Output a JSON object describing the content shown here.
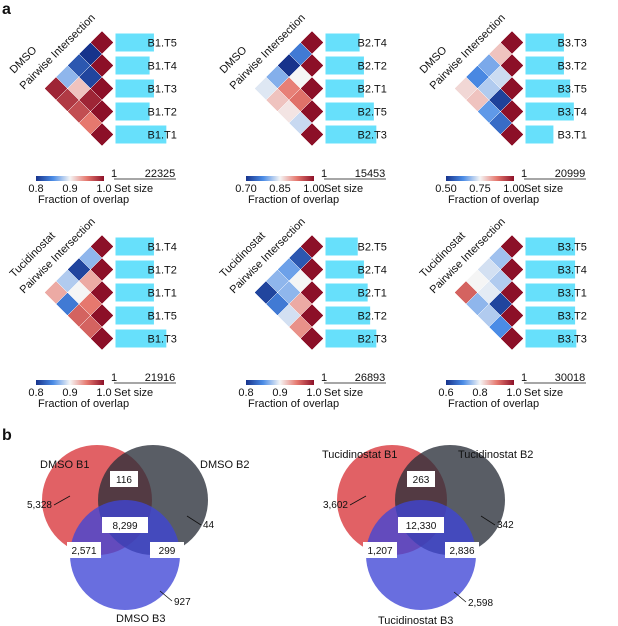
{
  "figure": {
    "panel_a_label": "a",
    "panel_b_label": "b",
    "panel_a": {
      "colorbar_title": "Fraction of overlap",
      "set_size_label": "Set size",
      "heatmaps": [
        {
          "condition": "DMSO",
          "subtitle": "Pairwise Intersection",
          "labels": [
            "B1.T5",
            "B1.T4",
            "B1.T3",
            "B1.T2",
            "B1.T1"
          ],
          "bar_widths": [
            0.62,
            0.55,
            0.62,
            0.55,
            0.82
          ],
          "max_value": "22325",
          "colorbar_ticks": [
            "0.8",
            "0.9",
            "1.0"
          ],
          "colorbar_min_val": 0.8,
          "cells": [
            [
              0.8,
              0.82,
              0.87,
              0.99
            ],
            [
              0.81,
              0.92,
              0.98
            ],
            [
              0.99,
              0.97
            ],
            [
              0.95
            ]
          ]
        },
        {
          "condition": "DMSO",
          "subtitle": "Pairwise Intersection",
          "labels": [
            "B2.T4",
            "B2.T2",
            "B2.T1",
            "B2.T5",
            "B2.T3"
          ],
          "bar_widths": [
            0.55,
            0.62,
            0.62,
            0.78,
            0.82
          ],
          "max_value": "15453",
          "colorbar_ticks": [
            "0.70",
            "0.85",
            "1.00"
          ],
          "colorbar_min_val": 0.7,
          "cells": [
            [
              0.76,
              0.7,
              0.8,
              0.84
            ],
            [
              0.85,
              0.92,
              0.88
            ],
            [
              0.93,
              0.86
            ],
            [
              0.83
            ]
          ]
        },
        {
          "condition": "DMSO",
          "subtitle": "Pairwise Intersection",
          "labels": [
            "B3.T3",
            "B3.T2",
            "B3.T5",
            "B3.T4",
            "B3.T1"
          ],
          "bar_widths": [
            0.62,
            0.62,
            0.72,
            0.78,
            0.45
          ],
          "max_value": "20999",
          "colorbar_ticks": [
            "0.50",
            "0.75",
            "1.00"
          ],
          "colorbar_min_val": 0.5,
          "cells": [
            [
              0.8,
              0.66,
              0.62,
              0.78
            ],
            [
              0.72,
              0.7,
              0.8
            ],
            [
              0.52,
              0.64
            ],
            [
              0.58
            ]
          ]
        },
        {
          "condition": "Tucidinostat",
          "subtitle": "Pairwise Intersection",
          "labels": [
            "B1.T4",
            "B1.T2",
            "B1.T1",
            "B1.T5",
            "B1.T3"
          ],
          "bar_widths": [
            0.62,
            0.62,
            0.62,
            0.62,
            0.82
          ],
          "max_value": "21916",
          "colorbar_ticks": [
            "0.8",
            "0.9",
            "1.0"
          ],
          "colorbar_min_val": 0.8,
          "cells": [
            [
              0.87,
              0.81,
              0.88,
              0.93
            ],
            [
              0.93,
              0.9,
              0.84
            ],
            [
              0.95,
              0.96
            ],
            [
              0.96
            ]
          ]
        },
        {
          "condition": "Tucidinostat",
          "subtitle": "Pairwise Intersection",
          "labels": [
            "B2.T5",
            "B2.T4",
            "B2.T1",
            "B2.T2",
            "B2.T3"
          ],
          "bar_widths": [
            0.52,
            0.62,
            0.68,
            0.72,
            0.82
          ],
          "max_value": "26893",
          "colorbar_ticks": [
            "0.8",
            "0.9",
            "1.0"
          ],
          "colorbar_min_val": 0.8,
          "cells": [
            [
              0.82,
              0.86,
              0.87,
              0.81
            ],
            [
              0.9,
              0.87,
              0.84
            ],
            [
              0.93,
              0.89
            ],
            [
              0.94
            ]
          ]
        },
        {
          "condition": "Tucidinostat",
          "subtitle": "Pairwise Intersection",
          "labels": [
            "B3.T5",
            "B3.T4",
            "B3.T1",
            "B3.T2",
            "B3.T3"
          ],
          "bar_widths": [
            0.8,
            0.8,
            0.8,
            0.8,
            0.82
          ],
          "max_value": "30018",
          "colorbar_ticks": [
            "0.6",
            "0.8",
            "1.0"
          ],
          "colorbar_min_val": 0.6,
          "cells": [
            [
              0.75,
              0.78,
              0.8,
              0.92
            ],
            [
              0.76,
              0.79,
              0.74
            ],
            [
              0.62,
              0.76
            ],
            [
              0.7
            ]
          ]
        }
      ]
    },
    "panel_b": {
      "venns": [
        {
          "labels": [
            "DMSO B1",
            "DMSO B2",
            "DMSO B3"
          ],
          "colors": [
            "#d8353a",
            "#2a2f3a",
            "#3f45d6"
          ],
          "label_colors": [
            "#d8353a",
            "#111111",
            "#3f45d6"
          ],
          "counts": {
            "only_a": "5,328",
            "only_b": "44",
            "only_c": "927",
            "ab": "116",
            "ac": "2,571",
            "bc": "299",
            "abc": "8,299"
          }
        },
        {
          "labels": [
            "Tucidinostat B1",
            "Tucidinostat B2",
            "Tucidinostat B3"
          ],
          "colors": [
            "#d8353a",
            "#2a2f3a",
            "#3f45d6"
          ],
          "label_colors": [
            "#d8353a",
            "#111111",
            "#3f45d6"
          ],
          "counts": {
            "only_a": "3,602",
            "only_b": "342",
            "only_c": "2,598",
            "ab": "263",
            "ac": "1,207",
            "bc": "2,836",
            "abc": "12,330"
          }
        }
      ]
    }
  }
}
